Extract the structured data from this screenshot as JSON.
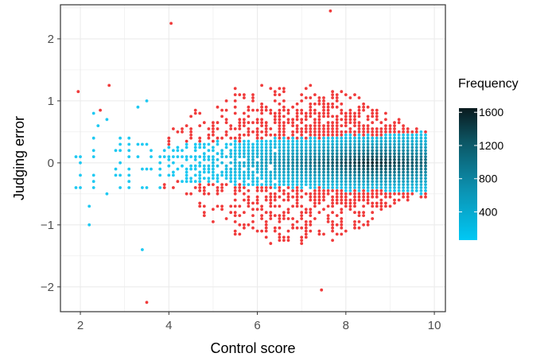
{
  "chart_data": {
    "type": "scatter",
    "xlabel": "Control score",
    "ylabel": "Judging error",
    "xlim": [
      1.55,
      10.25
    ],
    "ylim": [
      -2.4,
      2.55
    ],
    "x_ticks": [
      2,
      4,
      6,
      8,
      10
    ],
    "x_tick_labels": [
      "2",
      "4",
      "6",
      "8",
      "10"
    ],
    "y_ticks": [
      -2,
      -1,
      0,
      1,
      2
    ],
    "y_tick_labels": [
      "−2",
      "−1",
      "0",
      "1",
      "2"
    ],
    "grid": true,
    "colors": {
      "outlier": "#f03b3b",
      "low": "#1ec9f2",
      "high": "#0a1a1e",
      "grid": "#ebebeb",
      "panel_border": "#333333"
    },
    "legend": {
      "title": "Frequency",
      "position": "right",
      "ticks": [
        400,
        800,
        1200,
        1600
      ],
      "tick_labels": [
        "400",
        "800",
        "1200",
        "1600"
      ],
      "range": [
        60,
        1650
      ]
    },
    "isolated_points": [
      {
        "x": 1.95,
        "y": 1.15,
        "group": "outlier"
      },
      {
        "x": 2.65,
        "y": 1.25,
        "group": "outlier"
      },
      {
        "x": 2.45,
        "y": 0.85,
        "group": "outlier"
      },
      {
        "x": 4.05,
        "y": 2.25,
        "group": "outlier"
      },
      {
        "x": 7.65,
        "y": 2.45,
        "group": "outlier"
      },
      {
        "x": 3.5,
        "y": -2.25,
        "group": "outlier"
      },
      {
        "x": 7.45,
        "y": -2.05,
        "group": "outlier"
      },
      {
        "x": 3.4,
        "y": -1.4,
        "group": "inlier"
      },
      {
        "x": 2.2,
        "y": -1.0,
        "group": "inlier"
      },
      {
        "x": 2.2,
        "y": -0.7,
        "group": "inlier"
      },
      {
        "x": 2.6,
        "y": -0.5,
        "group": "inlier"
      },
      {
        "x": 2.3,
        "y": 0.8,
        "group": "inlier"
      },
      {
        "x": 2.4,
        "y": 0.6,
        "group": "inlier"
      },
      {
        "x": 2.6,
        "y": 0.7,
        "group": "inlier"
      },
      {
        "x": 3.5,
        "y": 1.0,
        "group": "inlier"
      },
      {
        "x": 3.3,
        "y": 0.9,
        "group": "inlier"
      }
    ],
    "density": {
      "description_units": "data",
      "x_range": [
        1.9,
        9.8
      ],
      "x_step": 0.1,
      "y_step": 0.05,
      "inlier_halfwidth_start": 0.3,
      "inlier_halfwidth_end": 0.5,
      "outlier_extent_max": 1.35
    }
  }
}
